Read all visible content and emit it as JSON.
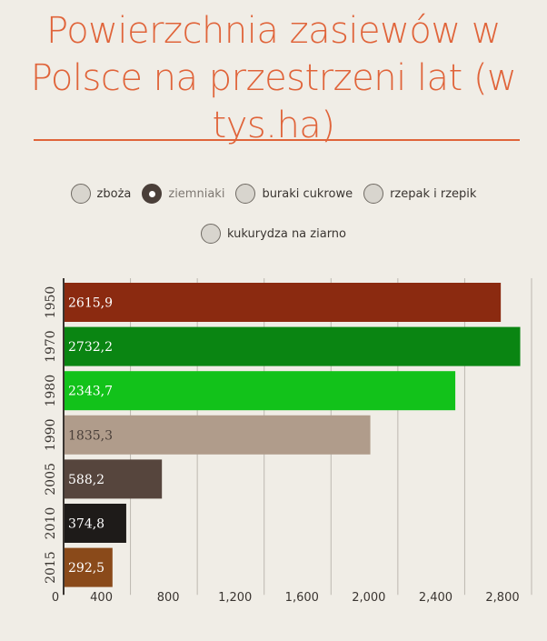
{
  "header": {
    "title": "Powierzchnia zasiewów w Polsce na przestrzeni lat (w tys.ha)"
  },
  "options": [
    {
      "label": "zboża",
      "selected": false
    },
    {
      "label": "ziemniaki",
      "selected": true
    },
    {
      "label": "buraki cukrowe",
      "selected": false
    },
    {
      "label": "rzepak i rzepik",
      "selected": false
    },
    {
      "label": "kukurydza na ziarno",
      "selected": false
    }
  ],
  "colors": {
    "title": "#e0643a",
    "axis": "#3a3531",
    "grid": "#bdb8b0"
  },
  "chart_data": {
    "type": "bar",
    "orientation": "horizontal",
    "title": "",
    "xlabel": "",
    "ylabel": "",
    "categories": [
      "1950",
      "1970",
      "1980",
      "1990",
      "2005",
      "2010",
      "2015"
    ],
    "values": [
      2615.9,
      2732.2,
      2343.7,
      1835.3,
      588.2,
      374.8,
      292.5
    ],
    "value_labels": [
      "2615,9",
      "2732,2",
      "2343,7",
      "1835,3",
      "588,2",
      "374,8",
      "292,5"
    ],
    "bar_colors": [
      "#8b2a10",
      "#0a8512",
      "#12c21a",
      "#b09c8b",
      "#56453d",
      "#1e1b19",
      "#8a4a1a"
    ],
    "label_colors": [
      "#ffffff",
      "#ffffff",
      "#ffffff",
      "#4a3f39",
      "#ffffff",
      "#ffffff",
      "#ffffff"
    ],
    "xlim": [
      0,
      2800
    ],
    "x_ticks": [
      0,
      400,
      800,
      1200,
      1600,
      2000,
      2400,
      2800
    ],
    "x_tick_labels": [
      "0",
      "400",
      "800",
      "1,200",
      "1,600",
      "2,000",
      "2,400",
      "2,800"
    ],
    "grid": true,
    "legend": "none"
  }
}
